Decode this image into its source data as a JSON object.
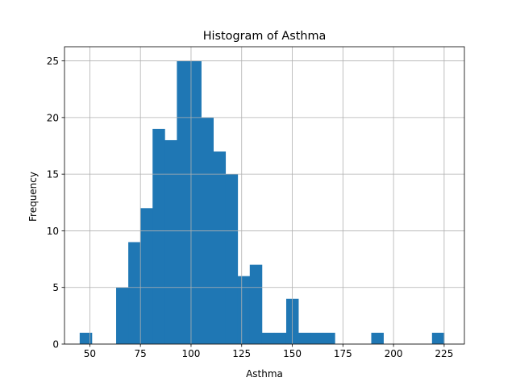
{
  "chart_data": {
    "type": "bar",
    "title": "Histogram of Asthma",
    "xlabel": "Asthma",
    "ylabel": "Frequency",
    "xlim": [
      37.5,
      235
    ],
    "ylim": [
      0,
      26.25
    ],
    "xticks": [
      50,
      75,
      100,
      125,
      150,
      175,
      200,
      225
    ],
    "xtick_labels": [
      "50",
      "75",
      "100",
      "125",
      "150",
      "175",
      "200",
      "225"
    ],
    "yticks": [
      0,
      5,
      10,
      15,
      20,
      25
    ],
    "ytick_labels": [
      "0",
      "5",
      "10",
      "15",
      "20",
      "25"
    ],
    "grid": true,
    "bar_color": "#1f77b4",
    "bins": [
      {
        "x0": 45.0,
        "x1": 51.0,
        "count": 1
      },
      {
        "x0": 51.0,
        "x1": 57.0,
        "count": 0
      },
      {
        "x0": 57.0,
        "x1": 63.0,
        "count": 0
      },
      {
        "x0": 63.0,
        "x1": 69.0,
        "count": 5
      },
      {
        "x0": 69.0,
        "x1": 75.0,
        "count": 9
      },
      {
        "x0": 75.0,
        "x1": 81.0,
        "count": 12
      },
      {
        "x0": 81.0,
        "x1": 87.0,
        "count": 19
      },
      {
        "x0": 87.0,
        "x1": 93.0,
        "count": 18
      },
      {
        "x0": 93.0,
        "x1": 99.0,
        "count": 25
      },
      {
        "x0": 99.0,
        "x1": 105.0,
        "count": 25
      },
      {
        "x0": 105.0,
        "x1": 111.0,
        "count": 20
      },
      {
        "x0": 111.0,
        "x1": 117.0,
        "count": 17
      },
      {
        "x0": 117.0,
        "x1": 123.0,
        "count": 15
      },
      {
        "x0": 123.0,
        "x1": 129.0,
        "count": 6
      },
      {
        "x0": 129.0,
        "x1": 135.0,
        "count": 7
      },
      {
        "x0": 135.0,
        "x1": 141.0,
        "count": 1
      },
      {
        "x0": 141.0,
        "x1": 147.0,
        "count": 1
      },
      {
        "x0": 147.0,
        "x1": 153.0,
        "count": 4
      },
      {
        "x0": 153.0,
        "x1": 159.0,
        "count": 1
      },
      {
        "x0": 159.0,
        "x1": 165.0,
        "count": 1
      },
      {
        "x0": 165.0,
        "x1": 171.0,
        "count": 1
      },
      {
        "x0": 171.0,
        "x1": 177.0,
        "count": 0
      },
      {
        "x0": 177.0,
        "x1": 183.0,
        "count": 0
      },
      {
        "x0": 183.0,
        "x1": 189.0,
        "count": 0
      },
      {
        "x0": 189.0,
        "x1": 195.0,
        "count": 1
      },
      {
        "x0": 195.0,
        "x1": 201.0,
        "count": 0
      },
      {
        "x0": 201.0,
        "x1": 207.0,
        "count": 0
      },
      {
        "x0": 207.0,
        "x1": 213.0,
        "count": 0
      },
      {
        "x0": 213.0,
        "x1": 219.0,
        "count": 0
      },
      {
        "x0": 219.0,
        "x1": 225.0,
        "count": 1
      }
    ]
  }
}
